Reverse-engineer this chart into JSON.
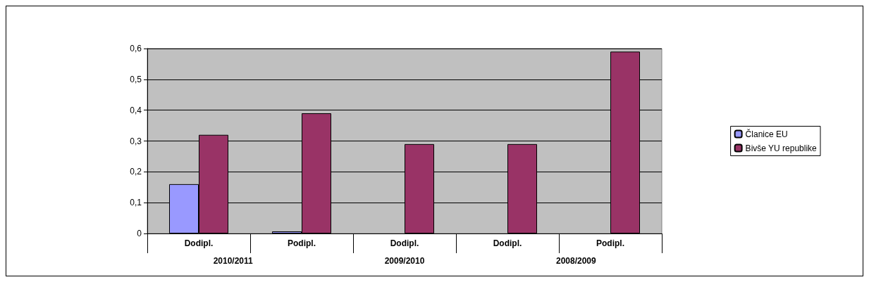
{
  "chart_data": {
    "type": "bar",
    "categories": [
      "Dodipl.",
      "Podipl.",
      "Dodipl.",
      "Dodipl.",
      "Podipl."
    ],
    "series": [
      {
        "name": "Članice EU",
        "color": "#9999ff",
        "values": [
          0.16,
          0,
          null,
          null,
          null
        ]
      },
      {
        "name": "Bivše YU republike",
        "color": "#993366",
        "values": [
          0.32,
          0.39,
          0.29,
          0.29,
          0.59
        ]
      }
    ],
    "ylim": [
      0,
      0.6
    ],
    "yticks": [
      {
        "value": 0,
        "label": "0"
      },
      {
        "value": 0.1,
        "label": "0,1"
      },
      {
        "value": 0.2,
        "label": "0,2"
      },
      {
        "value": 0.3,
        "label": "0,3"
      },
      {
        "value": 0.4,
        "label": "0,4"
      },
      {
        "value": 0.5,
        "label": "0,5"
      },
      {
        "value": 0.6,
        "label": "0,6"
      }
    ],
    "annotations": [
      "2010/2011",
      "2009/2010",
      "2008/2009"
    ],
    "grid": "y",
    "legend": "right"
  }
}
